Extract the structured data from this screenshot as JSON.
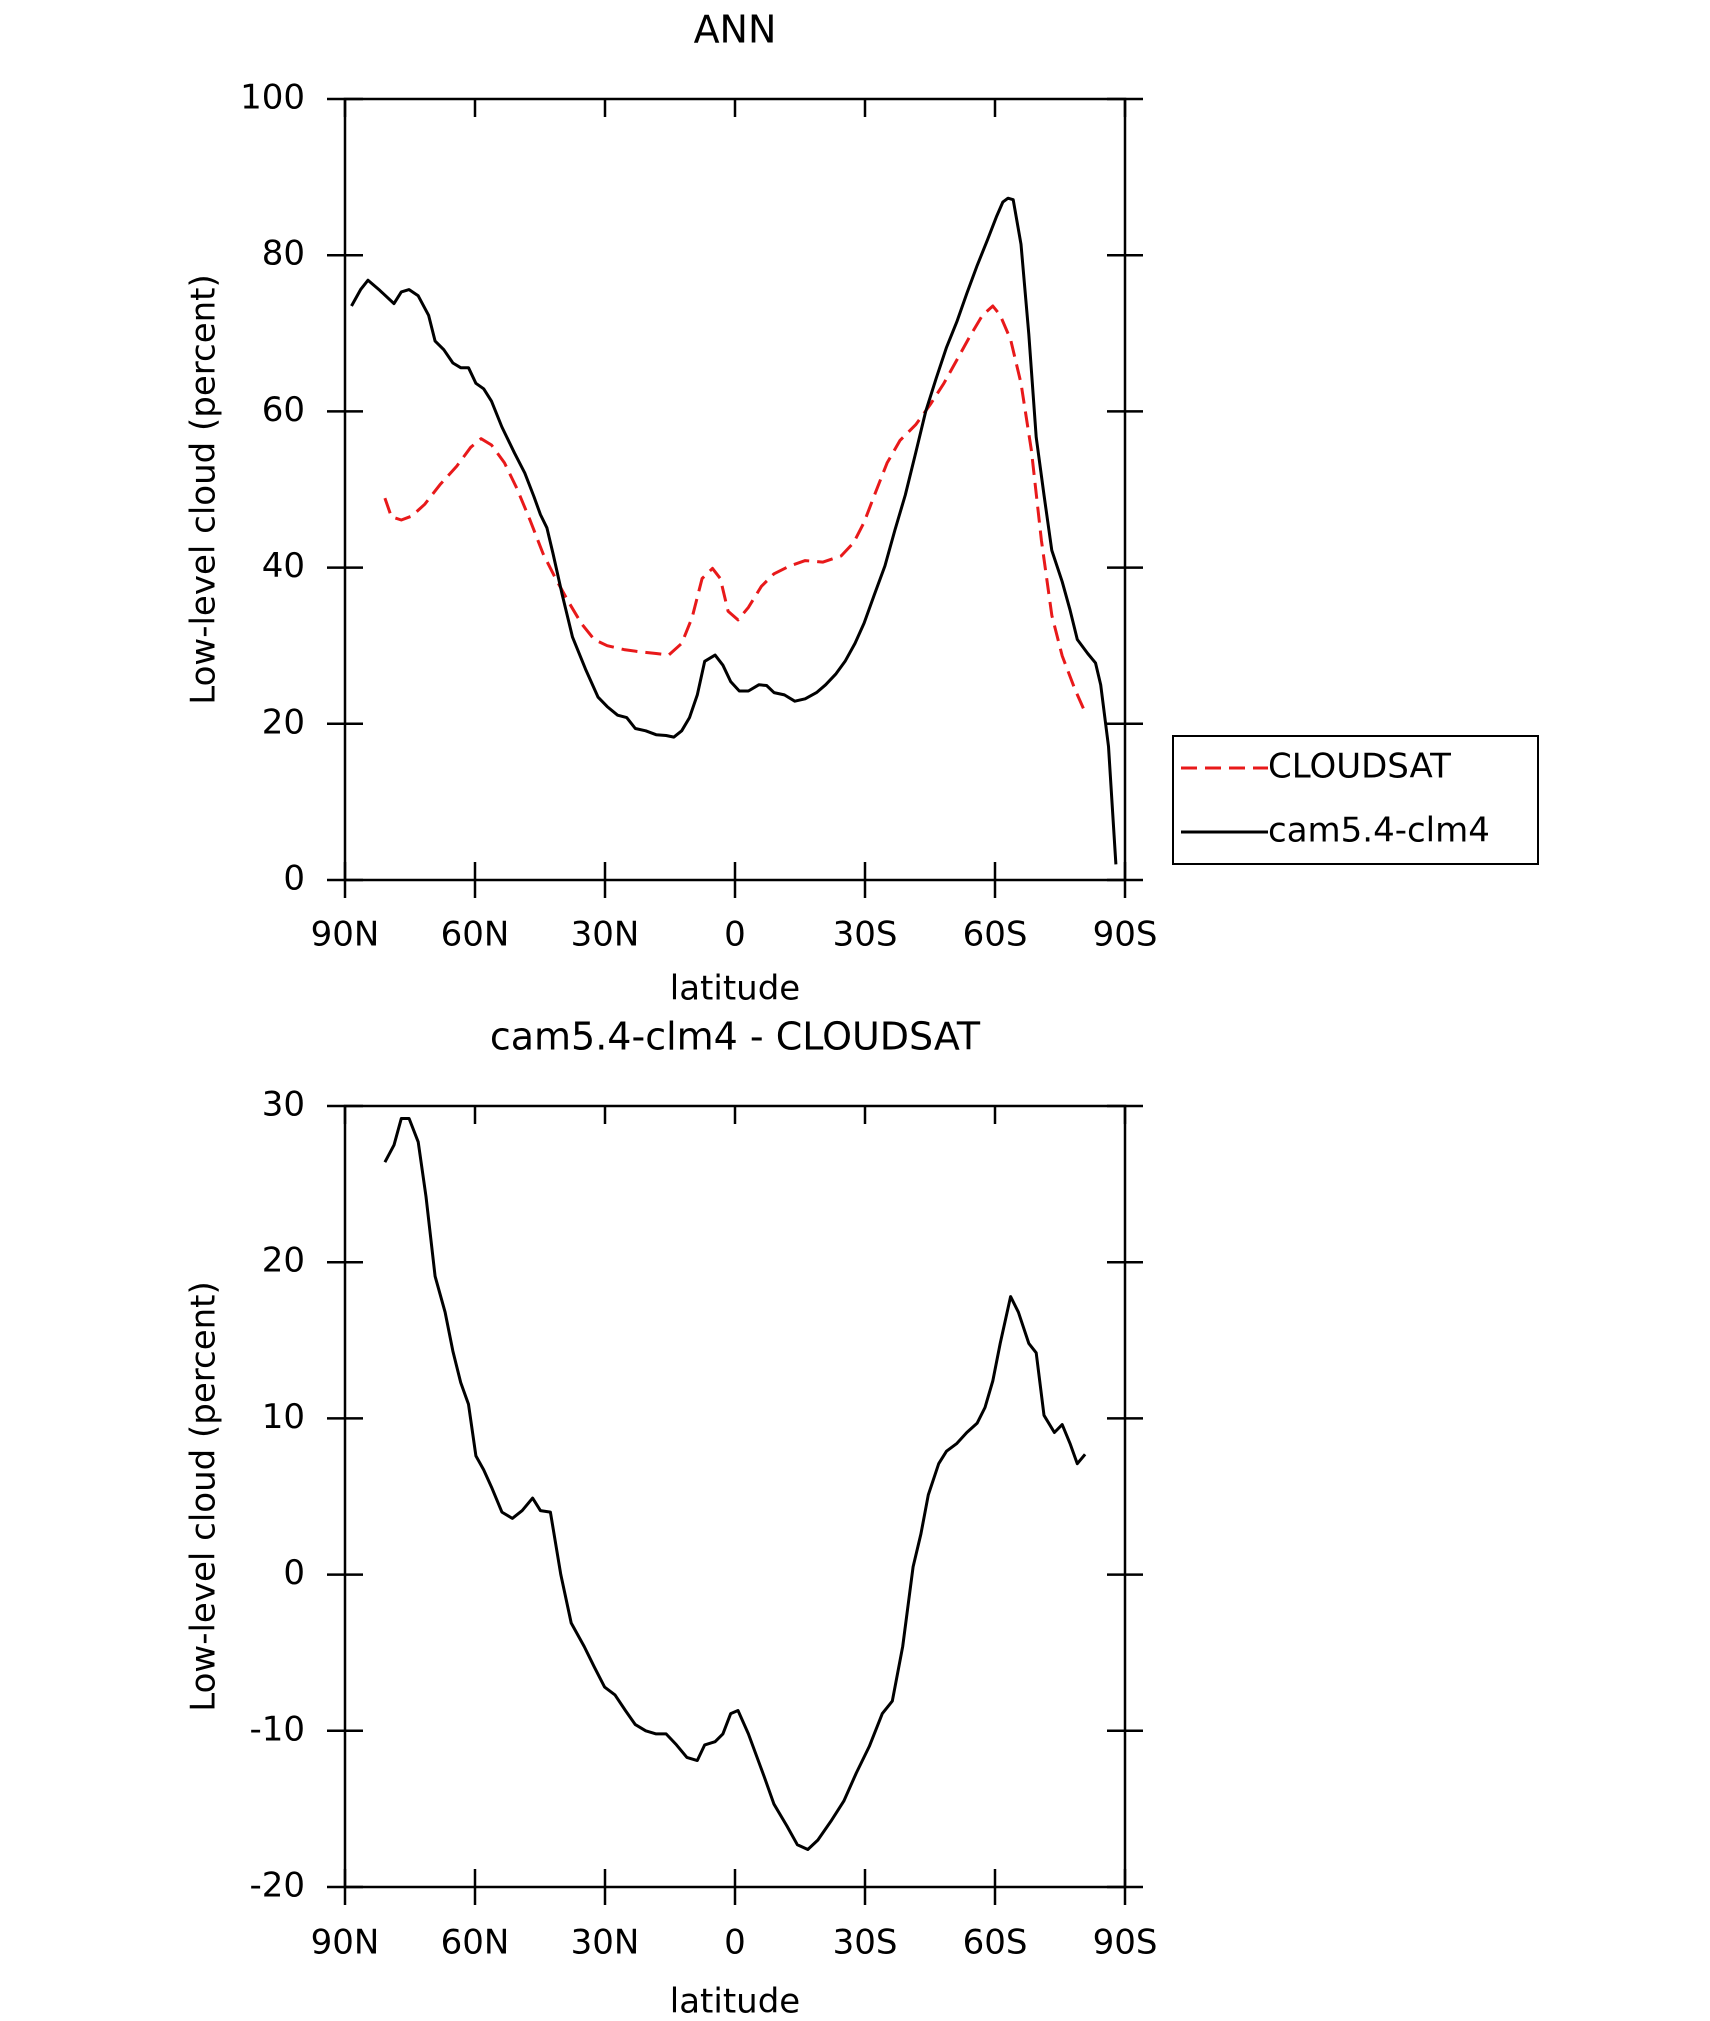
{
  "chart_data": [
    {
      "type": "line",
      "title": "ANN",
      "xlabel": "latitude",
      "ylabel": "Low-level cloud (percent)",
      "xlim": [
        90,
        -90
      ],
      "xticks": [
        {
          "value": 90,
          "label": "90N"
        },
        {
          "value": 60,
          "label": "60N"
        },
        {
          "value": 30,
          "label": "30N"
        },
        0,
        {
          "value": -30,
          "label": "30S"
        },
        {
          "value": -60,
          "label": "60S"
        },
        {
          "value": -90,
          "label": "90S"
        }
      ],
      "ylim": [
        0,
        100
      ],
      "yticks": [
        0,
        20,
        40,
        60,
        80,
        100
      ],
      "legend": "right",
      "series": [
        {
          "name": "CLOUDSAT",
          "color": "#e8191a",
          "dash": true,
          "x": [
            80.8,
            79.3,
            77,
            74.6,
            71.6,
            68.1,
            64.2,
            61,
            58.6,
            56.2,
            53.2,
            50.3,
            47.3,
            44.3,
            41.4,
            38.4,
            35.4,
            32.5,
            29.5,
            25.6,
            21.8,
            18.2,
            15.3,
            12.3,
            9.9,
            7.6,
            5.2,
            3.4,
            1.6,
            -0.7,
            -3.1,
            -6.1,
            -9,
            -12.6,
            -16.2,
            -20.3,
            -24.5,
            -27.4,
            -29.8,
            -32.2,
            -35.1,
            -38.1,
            -41.7,
            -45.2,
            -48.2,
            -51.2,
            -54.1,
            -57.1,
            -59.5,
            -61.2,
            -63.6,
            -66,
            -68.4,
            -70.7,
            -73.1,
            -75.5,
            -78.4,
            -81.1
          ],
          "values": [
            48.9,
            46.5,
            46.1,
            46.6,
            48.1,
            50.6,
            53,
            55.4,
            56.5,
            55.7,
            53.4,
            50.1,
            46.1,
            41.8,
            38.6,
            35.6,
            32.8,
            30.8,
            30,
            29.5,
            29.2,
            29,
            28.8,
            30.3,
            33.6,
            38.6,
            39.9,
            38.6,
            34.4,
            33.3,
            34.9,
            37.6,
            39.2,
            40.2,
            40.9,
            40.7,
            41.5,
            43.2,
            45.8,
            49.3,
            53.4,
            56.3,
            58.3,
            61,
            63.6,
            66.6,
            69.5,
            72.3,
            73.5,
            72.3,
            69.2,
            63.6,
            55,
            43.5,
            33.9,
            28.7,
            24.5,
            21.1
          ]
        },
        {
          "name": "cam5.4-clm4",
          "color": "#000000",
          "dash": false,
          "x": [
            88.5,
            86.4,
            84.7,
            82,
            78.7,
            77,
            75.2,
            73.1,
            70.7,
            69.2,
            67.2,
            65.1,
            63.3,
            61.5,
            59.8,
            58,
            56.2,
            53.8,
            50.9,
            48.5,
            46.4,
            44.9,
            43.4,
            42,
            39.9,
            37.5,
            34.5,
            31.6,
            29.5,
            27.1,
            25,
            23,
            20.6,
            18.2,
            15.9,
            14.1,
            12.3,
            10.5,
            8.7,
            7,
            4.6,
            2.8,
            1,
            -1,
            -3.1,
            -5.5,
            -7.3,
            -9,
            -11.4,
            -13.8,
            -16.2,
            -18.8,
            -20.9,
            -23.3,
            -25.4,
            -27.7,
            -29.8,
            -32.2,
            -34.6,
            -36.9,
            -39.3,
            -41.7,
            -44,
            -46.4,
            -48.8,
            -51.2,
            -53.5,
            -55.9,
            -58.3,
            -60.4,
            -61.8,
            -63,
            -64.2,
            -66,
            -67.8,
            -69.5,
            -71.3,
            -73.1,
            -75.5,
            -77.3,
            -79,
            -81.4,
            -83.2,
            -84.4,
            -86.2,
            -87.9
          ],
          "values": [
            73.5,
            75.6,
            76.8,
            75.5,
            73.8,
            75.3,
            75.6,
            74.8,
            72.3,
            69,
            67.9,
            66.2,
            65.6,
            65.6,
            63.6,
            62.9,
            61.3,
            58,
            54.7,
            52.1,
            49.1,
            46.8,
            45.1,
            41.8,
            36.6,
            31.1,
            27,
            23.4,
            22.2,
            21.1,
            20.8,
            19.4,
            19.1,
            18.6,
            18.5,
            18.3,
            19.1,
            20.8,
            23.7,
            28,
            28.8,
            27.5,
            25.4,
            24.2,
            24.2,
            25,
            24.9,
            24,
            23.7,
            22.9,
            23.2,
            24,
            25,
            26.4,
            28,
            30.3,
            32.9,
            36.6,
            40.2,
            44.8,
            49.3,
            54.7,
            60,
            64.2,
            68.2,
            71.5,
            75.1,
            78.7,
            82,
            85,
            86.8,
            87.3,
            87.1,
            81.4,
            69.9,
            56.7,
            49.3,
            42.2,
            38.2,
            34.6,
            30.8,
            29,
            27.8,
            25,
            17.1,
            2
          ]
        }
      ]
    },
    {
      "type": "line",
      "title": "cam5.4-clm4 - CLOUDSAT",
      "xlabel": "latitude",
      "ylabel": "Low-level cloud (percent)",
      "xlim": [
        90,
        -90
      ],
      "xticks": [
        {
          "value": 90,
          "label": "90N"
        },
        {
          "value": 60,
          "label": "60N"
        },
        {
          "value": 30,
          "label": "30N"
        },
        0,
        {
          "value": -30,
          "label": "30S"
        },
        {
          "value": -60,
          "label": "60S"
        },
        {
          "value": -90,
          "label": "90S"
        }
      ],
      "ylim": [
        -20,
        30
      ],
      "yticks": [
        -20,
        -10,
        0,
        10,
        20,
        30
      ],
      "series": [
        {
          "color": "#000000",
          "dash": false,
          "x": [
            80.8,
            78.7,
            77,
            75.2,
            73.1,
            71.3,
            69.2,
            66.9,
            65.1,
            63.3,
            61.5,
            59.8,
            58,
            56.2,
            53.8,
            51.4,
            49.1,
            46.7,
            44.9,
            42.6,
            40.2,
            37.8,
            34.8,
            32.5,
            30.1,
            27.7,
            25.3,
            23,
            20.6,
            18.2,
            15.9,
            13.5,
            11.1,
            8.7,
            7,
            4.6,
            2.8,
            1,
            -0.7,
            -3.1,
            -6.7,
            -9,
            -12,
            -14.4,
            -16.8,
            -19.1,
            -22.1,
            -25.1,
            -28,
            -31,
            -34,
            -36.3,
            -38.7,
            -41.1,
            -42.9,
            -44.6,
            -47,
            -48.8,
            -51.2,
            -53.5,
            -55.9,
            -57.7,
            -59.5,
            -61.2,
            -63.6,
            -65.4,
            -67.8,
            -69.5,
            -71.3,
            -73.7,
            -75.5,
            -77.3,
            -79,
            -80.8
          ],
          "values": [
            26.4,
            27.5,
            29.2,
            29.2,
            27.7,
            24.2,
            19.1,
            16.8,
            14.3,
            12.3,
            10.9,
            7.6,
            6.7,
            5.6,
            4,
            3.6,
            4.1,
            4.9,
            4.1,
            4,
            0,
            -3.1,
            -4.6,
            -5.9,
            -7.2,
            -7.7,
            -8.7,
            -9.6,
            -10,
            -10.2,
            -10.2,
            -10.9,
            -11.7,
            -11.9,
            -10.9,
            -10.7,
            -10.2,
            -8.9,
            -8.7,
            -10.2,
            -12.9,
            -14.7,
            -16.1,
            -17.3,
            -17.6,
            -17,
            -15.8,
            -14.5,
            -12.7,
            -11,
            -8.9,
            -8.1,
            -4.6,
            0.5,
            2.6,
            5.1,
            7.1,
            7.9,
            8.4,
            9.1,
            9.7,
            10.7,
            12.4,
            14.8,
            17.8,
            16.8,
            14.8,
            14.2,
            10.2,
            9.1,
            9.6,
            8.4,
            7.1,
            7.7
          ]
        }
      ]
    }
  ]
}
